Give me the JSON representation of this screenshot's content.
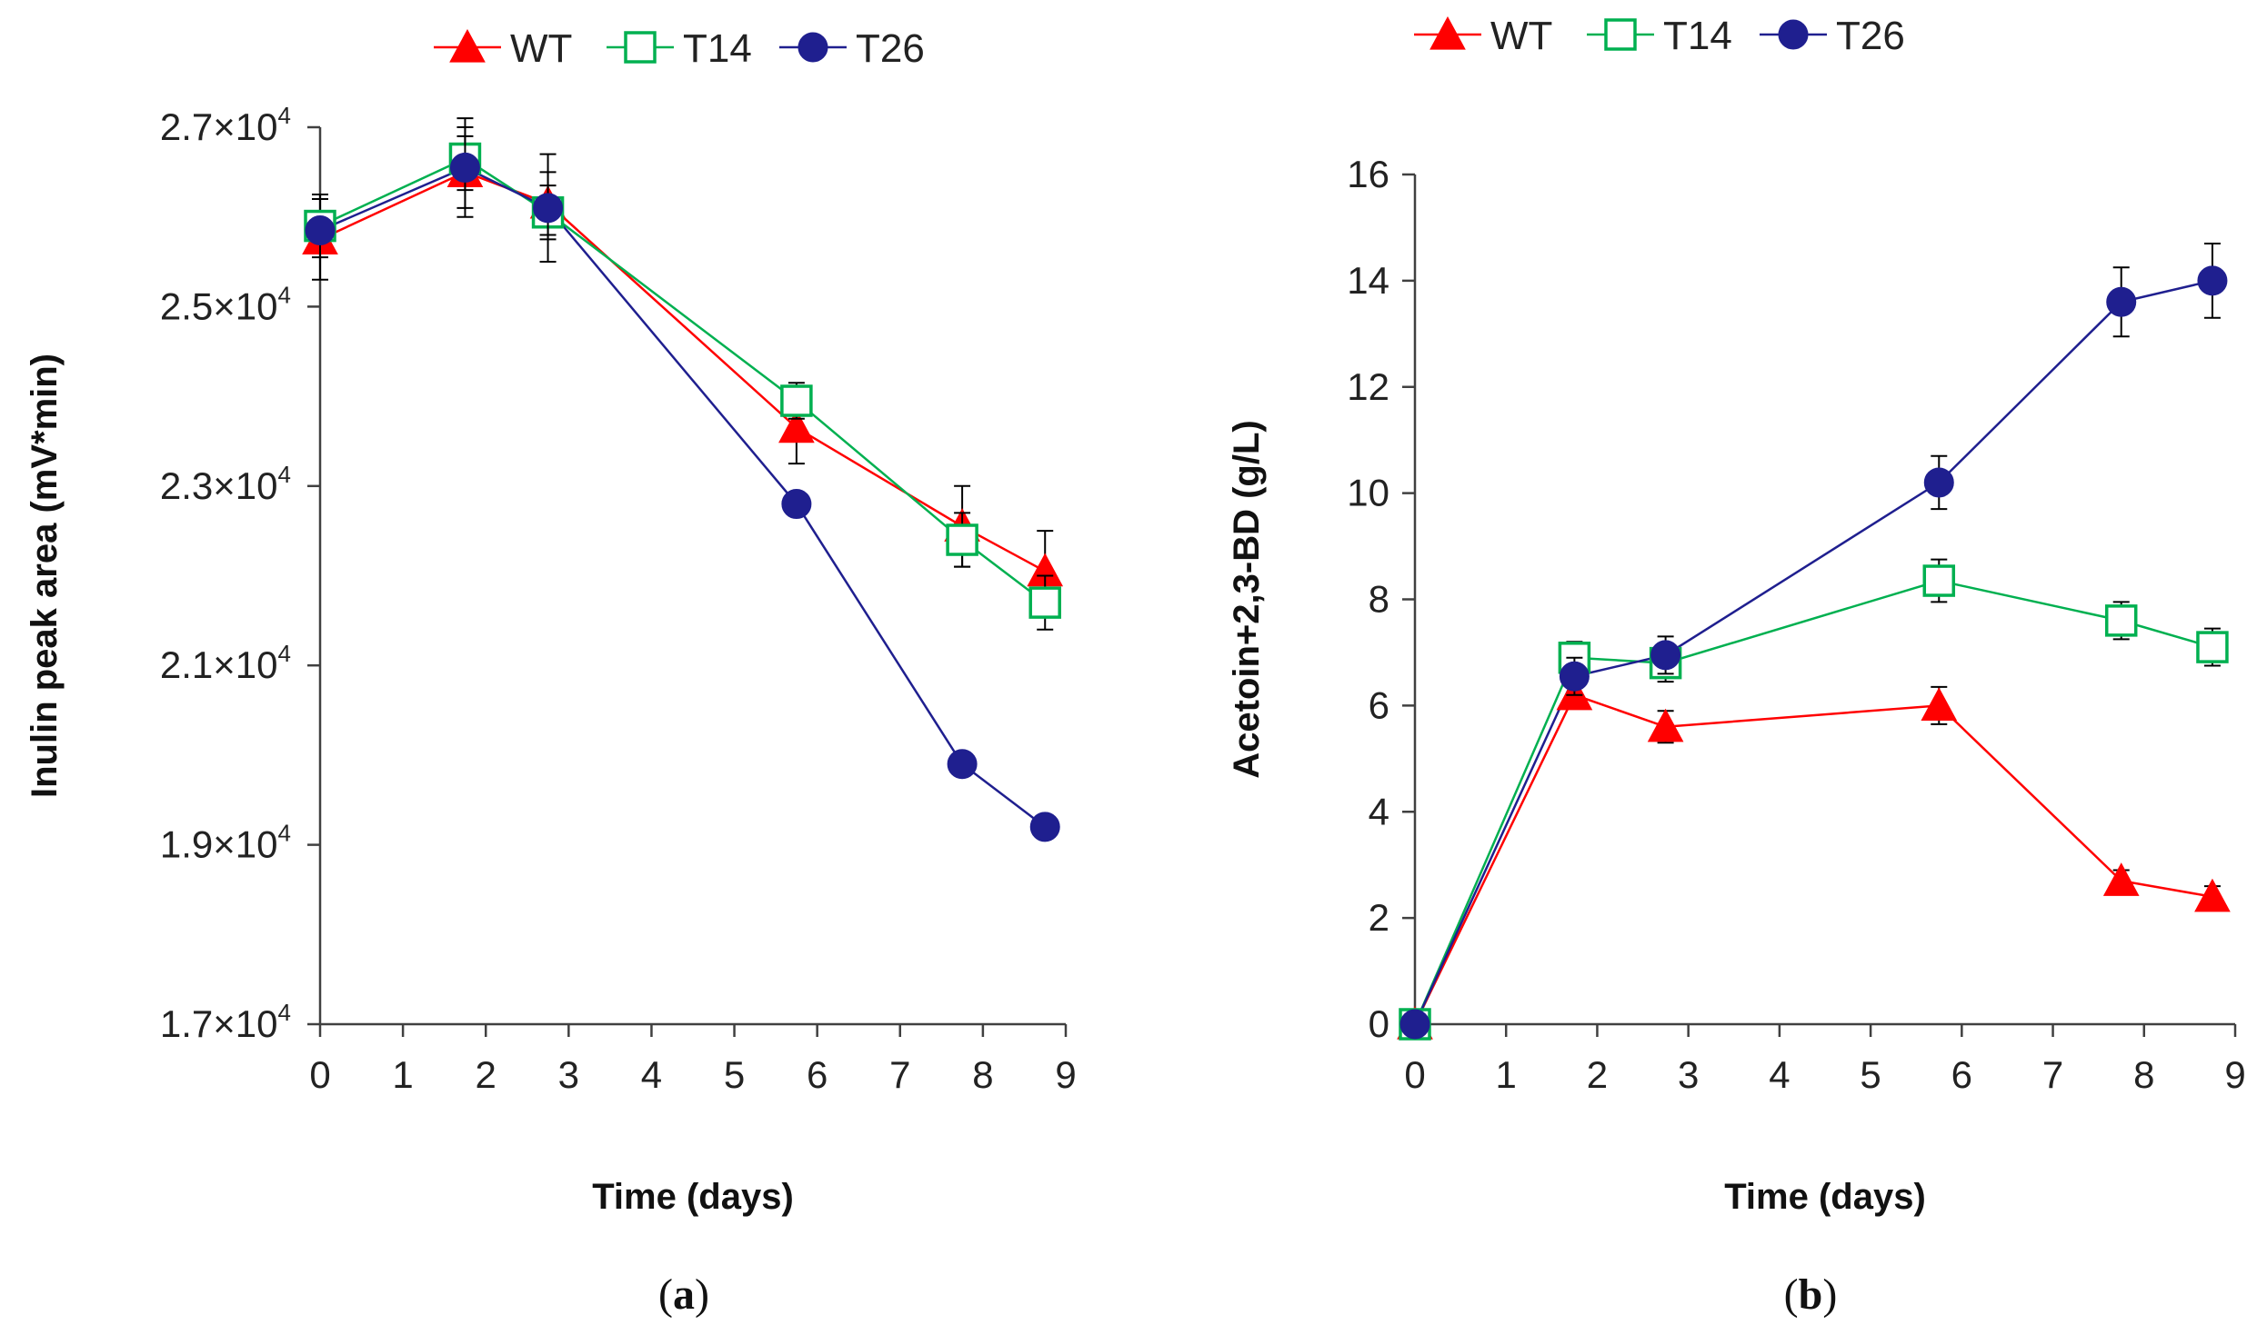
{
  "chart_data": [
    {
      "type": "line",
      "panel_label": "a",
      "xlabel": "Time (days)",
      "ylabel": "Inulin peak area (mV*min)",
      "xlim": [
        0,
        9
      ],
      "ylim": [
        17000,
        27000
      ],
      "x_ticks": [
        "0",
        "1",
        "2",
        "3",
        "4",
        "5",
        "6",
        "7",
        "8",
        "9"
      ],
      "y_ticks": [
        {
          "value": 17000,
          "mantissa": "1.7×10",
          "exp": "4"
        },
        {
          "value": 19000,
          "mantissa": "1.9×10",
          "exp": "4"
        },
        {
          "value": 21000,
          "mantissa": "2.1×10",
          "exp": "4"
        },
        {
          "value": 23000,
          "mantissa": "2.3×10",
          "exp": "4"
        },
        {
          "value": 25000,
          "mantissa": "2.5×10",
          "exp": "4"
        },
        {
          "value": 27000,
          "mantissa": "2.7×10",
          "exp": "4"
        }
      ],
      "legend": [
        "WT",
        "T14",
        "T26"
      ],
      "legend_position": "top-center",
      "series": [
        {
          "name": "WT",
          "marker": "triangle",
          "color": "#ff0000",
          "x": [
            0,
            1.75,
            2.75,
            5.75,
            7.75,
            8.75
          ],
          "y": [
            25750,
            26500,
            26150,
            23650,
            22550,
            22050
          ],
          "err": [
            450,
            400,
            350,
            400,
            450,
            450
          ]
        },
        {
          "name": "T14",
          "marker": "open-square",
          "color": "#00b050",
          "x": [
            0,
            1.75,
            2.75,
            5.75,
            7.75,
            8.75
          ],
          "y": [
            25900,
            26650,
            26050,
            23950,
            22400,
            21700
          ],
          "err": [
            350,
            350,
            300,
            200,
            300,
            300
          ]
        },
        {
          "name": "T26",
          "marker": "circle",
          "color": "#1f1f8f",
          "x": [
            0,
            1.75,
            2.75,
            5.75,
            7.75,
            8.75
          ],
          "y": [
            25850,
            26550,
            26100,
            22800,
            19900,
            19200
          ],
          "err": [
            0,
            550,
            600,
            0,
            0,
            0
          ]
        }
      ]
    },
    {
      "type": "line",
      "panel_label": "b",
      "xlabel": "Time (days)",
      "ylabel": "Acetoin+2,3-BD (g/L)",
      "xlim": [
        0,
        9
      ],
      "ylim": [
        0,
        16
      ],
      "x_ticks": [
        "0",
        "1",
        "2",
        "3",
        "4",
        "5",
        "6",
        "7",
        "8",
        "9"
      ],
      "y_ticks": [
        {
          "value": 0,
          "label": "0"
        },
        {
          "value": 2,
          "label": "2"
        },
        {
          "value": 4,
          "label": "4"
        },
        {
          "value": 6,
          "label": "6"
        },
        {
          "value": 8,
          "label": "8"
        },
        {
          "value": 10,
          "label": "10"
        },
        {
          "value": 12,
          "label": "12"
        },
        {
          "value": 14,
          "label": "14"
        },
        {
          "value": 16,
          "label": "16"
        }
      ],
      "legend": [
        "WT",
        "T14",
        "T26"
      ],
      "legend_position": "top-center",
      "series": [
        {
          "name": "WT",
          "marker": "triangle",
          "color": "#ff0000",
          "x": [
            0,
            1.75,
            2.75,
            5.75,
            7.75,
            8.75
          ],
          "y": [
            0,
            6.2,
            5.6,
            6.0,
            2.7,
            2.4
          ],
          "err": [
            0,
            0.2,
            0.3,
            0.35,
            0.2,
            0.2
          ]
        },
        {
          "name": "T14",
          "marker": "open-square",
          "color": "#00b050",
          "x": [
            0,
            1.75,
            2.75,
            5.75,
            7.75,
            8.75
          ],
          "y": [
            0,
            6.9,
            6.8,
            8.35,
            7.6,
            7.1
          ],
          "err": [
            0,
            0.3,
            0.35,
            0.4,
            0.35,
            0.35
          ]
        },
        {
          "name": "T26",
          "marker": "circle",
          "color": "#1f1f8f",
          "x": [
            0,
            1.75,
            2.75,
            5.75,
            7.75,
            8.75
          ],
          "y": [
            0,
            6.55,
            6.95,
            10.2,
            13.6,
            14.0
          ],
          "err": [
            0,
            0.35,
            0.35,
            0.5,
            0.65,
            0.7
          ]
        }
      ]
    }
  ]
}
